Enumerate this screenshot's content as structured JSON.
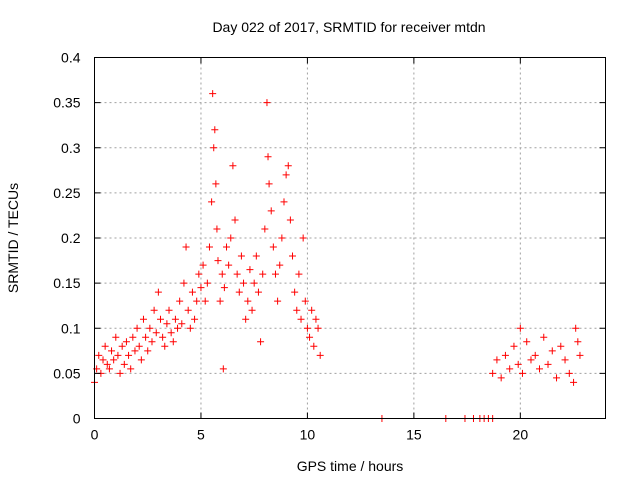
{
  "chart_data": {
    "type": "scatter",
    "title": "Day 022 of 2017, SRMTID for receiver mtdn",
    "xlabel": "GPS time / hours",
    "ylabel": "SRMTID / TECUs",
    "xlim": [
      0,
      24
    ],
    "ylim": [
      0,
      0.4
    ],
    "xticks": [
      0,
      5,
      10,
      15,
      20
    ],
    "xtick_labels": [
      "0",
      "5",
      "10",
      "15",
      "20"
    ],
    "yticks": [
      0,
      0.05,
      0.1,
      0.15,
      0.2,
      0.25,
      0.3,
      0.35,
      0.4
    ],
    "ytick_labels": [
      "0",
      "0.05",
      "0.1",
      "0.15",
      "0.2",
      "0.25",
      "0.3",
      "0.35",
      "0.4"
    ],
    "grid": true,
    "marker": "plus",
    "color": "#ff0000",
    "series": [
      {
        "name": "SRMTID",
        "points": [
          [
            0.0,
            0.04
          ],
          [
            0.1,
            0.055
          ],
          [
            0.2,
            0.07
          ],
          [
            0.3,
            0.05
          ],
          [
            0.4,
            0.065
          ],
          [
            0.5,
            0.08
          ],
          [
            0.6,
            0.06
          ],
          [
            0.7,
            0.055
          ],
          [
            0.8,
            0.075
          ],
          [
            0.9,
            0.065
          ],
          [
            1.0,
            0.09
          ],
          [
            1.1,
            0.07
          ],
          [
            1.2,
            0.05
          ],
          [
            1.3,
            0.08
          ],
          [
            1.4,
            0.06
          ],
          [
            1.5,
            0.085
          ],
          [
            1.6,
            0.07
          ],
          [
            1.7,
            0.055
          ],
          [
            1.8,
            0.09
          ],
          [
            1.9,
            0.075
          ],
          [
            2.0,
            0.1
          ],
          [
            2.1,
            0.08
          ],
          [
            2.2,
            0.065
          ],
          [
            2.3,
            0.11
          ],
          [
            2.4,
            0.09
          ],
          [
            2.5,
            0.075
          ],
          [
            2.6,
            0.1
          ],
          [
            2.7,
            0.085
          ],
          [
            2.8,
            0.12
          ],
          [
            2.9,
            0.095
          ],
          [
            3.0,
            0.14
          ],
          [
            3.1,
            0.11
          ],
          [
            3.2,
            0.09
          ],
          [
            3.3,
            0.08
          ],
          [
            3.4,
            0.105
          ],
          [
            3.5,
            0.12
          ],
          [
            3.6,
            0.095
          ],
          [
            3.7,
            0.085
          ],
          [
            3.8,
            0.11
          ],
          [
            3.9,
            0.1
          ],
          [
            4.0,
            0.13
          ],
          [
            4.1,
            0.105
          ],
          [
            4.2,
            0.15
          ],
          [
            4.3,
            0.19
          ],
          [
            4.4,
            0.12
          ],
          [
            4.5,
            0.1
          ],
          [
            4.6,
            0.14
          ],
          [
            4.7,
            0.11
          ],
          [
            4.8,
            0.13
          ],
          [
            4.9,
            0.16
          ],
          [
            5.0,
            0.145
          ],
          [
            5.1,
            0.17
          ],
          [
            5.2,
            0.13
          ],
          [
            5.3,
            0.15
          ],
          [
            5.4,
            0.19
          ],
          [
            5.5,
            0.24
          ],
          [
            5.55,
            0.36
          ],
          [
            5.6,
            0.3
          ],
          [
            5.65,
            0.32
          ],
          [
            5.7,
            0.26
          ],
          [
            5.75,
            0.21
          ],
          [
            5.8,
            0.175
          ],
          [
            5.9,
            0.13
          ],
          [
            6.0,
            0.16
          ],
          [
            6.05,
            0.055
          ],
          [
            6.1,
            0.145
          ],
          [
            6.2,
            0.19
          ],
          [
            6.3,
            0.17
          ],
          [
            6.4,
            0.2
          ],
          [
            6.5,
            0.28
          ],
          [
            6.6,
            0.22
          ],
          [
            6.7,
            0.16
          ],
          [
            6.8,
            0.14
          ],
          [
            6.9,
            0.18
          ],
          [
            7.0,
            0.15
          ],
          [
            7.1,
            0.11
          ],
          [
            7.2,
            0.13
          ],
          [
            7.3,
            0.165
          ],
          [
            7.4,
            0.12
          ],
          [
            7.5,
            0.15
          ],
          [
            7.6,
            0.18
          ],
          [
            7.7,
            0.14
          ],
          [
            7.8,
            0.085
          ],
          [
            7.9,
            0.16
          ],
          [
            8.0,
            0.21
          ],
          [
            8.1,
            0.35
          ],
          [
            8.15,
            0.29
          ],
          [
            8.2,
            0.26
          ],
          [
            8.3,
            0.23
          ],
          [
            8.4,
            0.19
          ],
          [
            8.5,
            0.16
          ],
          [
            8.6,
            0.13
          ],
          [
            8.7,
            0.17
          ],
          [
            8.8,
            0.2
          ],
          [
            8.9,
            0.24
          ],
          [
            9.0,
            0.27
          ],
          [
            9.1,
            0.28
          ],
          [
            9.2,
            0.22
          ],
          [
            9.3,
            0.18
          ],
          [
            9.4,
            0.14
          ],
          [
            9.5,
            0.12
          ],
          [
            9.6,
            0.16
          ],
          [
            9.7,
            0.11
          ],
          [
            9.8,
            0.2
          ],
          [
            9.9,
            0.13
          ],
          [
            10.0,
            0.1
          ],
          [
            10.1,
            0.09
          ],
          [
            10.2,
            0.12
          ],
          [
            10.3,
            0.08
          ],
          [
            10.4,
            0.11
          ],
          [
            10.5,
            0.1
          ],
          [
            10.6,
            0.07
          ],
          [
            13.5,
            0.0
          ],
          [
            16.5,
            0.0
          ],
          [
            17.4,
            0.0
          ],
          [
            17.8,
            0.0
          ],
          [
            18.1,
            0.0
          ],
          [
            18.3,
            0.0
          ],
          [
            18.5,
            0.0
          ],
          [
            18.7,
            0.0
          ],
          [
            18.7,
            0.05
          ],
          [
            18.9,
            0.065
          ],
          [
            19.1,
            0.045
          ],
          [
            19.3,
            0.07
          ],
          [
            19.5,
            0.055
          ],
          [
            19.7,
            0.08
          ],
          [
            19.9,
            0.06
          ],
          [
            20.0,
            0.1
          ],
          [
            20.1,
            0.05
          ],
          [
            20.3,
            0.085
          ],
          [
            20.5,
            0.065
          ],
          [
            20.7,
            0.07
          ],
          [
            20.9,
            0.055
          ],
          [
            21.1,
            0.09
          ],
          [
            21.3,
            0.06
          ],
          [
            21.5,
            0.075
          ],
          [
            21.7,
            0.045
          ],
          [
            21.9,
            0.08
          ],
          [
            22.1,
            0.065
          ],
          [
            22.3,
            0.05
          ],
          [
            22.5,
            0.04
          ],
          [
            22.6,
            0.1
          ],
          [
            22.7,
            0.085
          ],
          [
            22.8,
            0.07
          ]
        ]
      }
    ]
  }
}
